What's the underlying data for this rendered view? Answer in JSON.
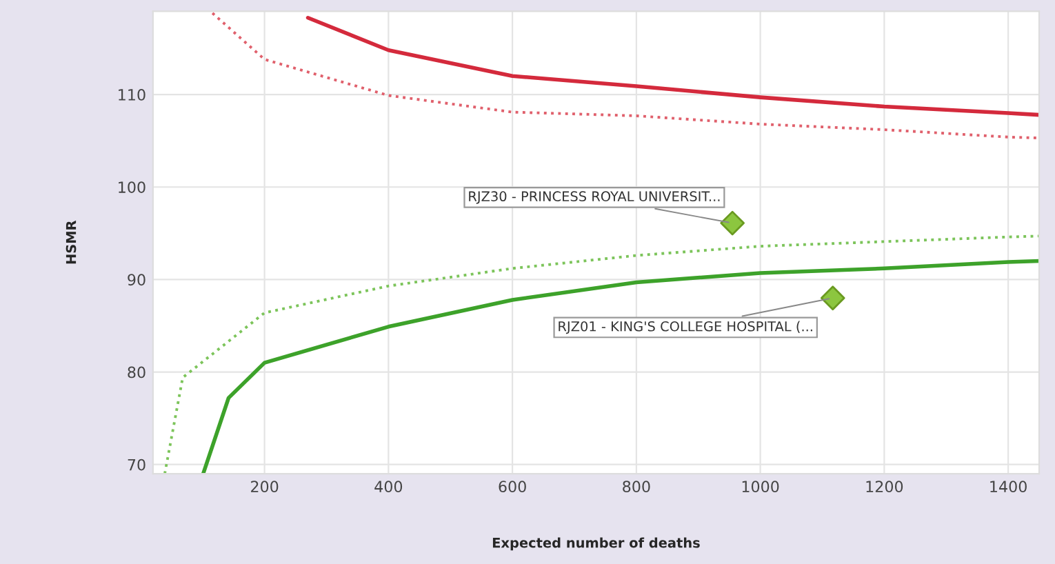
{
  "chart_data": {
    "type": "line",
    "xlabel": "Expected number of deaths",
    "ylabel": "HSMR",
    "xlim": [
      20,
      1450
    ],
    "ylim": [
      69,
      119
    ],
    "xticks": [
      200,
      400,
      600,
      800,
      1000,
      1200,
      1400
    ],
    "yticks": [
      70,
      80,
      90,
      100,
      110
    ],
    "grid": true,
    "legend": false,
    "series": [
      {
        "color": "#d42a3c",
        "line_style": "solid",
        "marker": "none",
        "x": [
          270,
          400,
          600,
          800,
          1000,
          1200,
          1400,
          1450
        ],
        "values": [
          118.3,
          114.8,
          112.0,
          110.9,
          109.7,
          108.7,
          108.0,
          107.8
        ]
      },
      {
        "color": "#e0606c",
        "line_style": "dotted",
        "marker": "none",
        "x": [
          116,
          200,
          400,
          600,
          800,
          1000,
          1200,
          1400,
          1450
        ],
        "values": [
          118.8,
          113.8,
          109.9,
          108.1,
          107.7,
          106.8,
          106.2,
          105.4,
          105.3
        ]
      },
      {
        "color": "#7cc45a",
        "line_style": "dotted",
        "marker": "none",
        "x": [
          39,
          68,
          200,
          400,
          600,
          800,
          1000,
          1200,
          1400,
          1450
        ],
        "values": [
          69,
          79.4,
          86.4,
          89.3,
          91.2,
          92.6,
          93.6,
          94.1,
          94.6,
          94.7
        ]
      },
      {
        "color": "#3da22a",
        "line_style": "solid",
        "marker": "none",
        "x": [
          101,
          142,
          200,
          400,
          600,
          800,
          1000,
          1200,
          1400,
          1450
        ],
        "values": [
          69,
          77.2,
          81.0,
          84.9,
          87.8,
          89.7,
          90.7,
          91.2,
          91.9,
          92.0
        ]
      },
      {
        "type": "scatter",
        "color": "#8cc63f",
        "marker": "diamond",
        "x": [
          955,
          1117
        ],
        "values": [
          96.1,
          88.0
        ]
      }
    ],
    "annotations": [
      {
        "text": "RJZ30 - PRINCESS ROYAL UNIVERSIT...",
        "x": 955,
        "y": 96.1
      },
      {
        "text": "RJZ01 - KING'S COLLEGE HOSPITAL (...",
        "x": 1117,
        "y": 88.0
      }
    ]
  }
}
